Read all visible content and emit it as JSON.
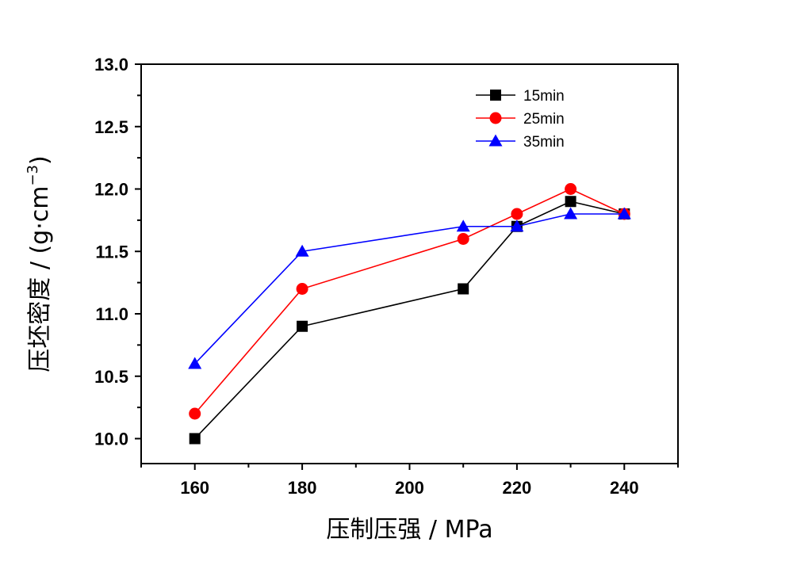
{
  "chart_data": {
    "type": "line",
    "xlabel": "压制压强 / MPa",
    "ylabel_main": "压坯密度 / (g·cm",
    "ylabel_exp": "−3",
    "ylabel_close": ")",
    "xlim": [
      150,
      250
    ],
    "ylim": [
      9.8,
      13.0
    ],
    "x_ticks": [
      160,
      180,
      200,
      220,
      240
    ],
    "x_tick_labels": [
      "160",
      "180",
      "200",
      "220",
      "240"
    ],
    "y_ticks": [
      10.0,
      10.5,
      11.0,
      11.5,
      12.0,
      12.5,
      13.0
    ],
    "y_tick_labels": [
      "10.0",
      "10.5",
      "11.0",
      "11.5",
      "12.0",
      "12.5",
      "13.0"
    ],
    "grid": false,
    "legend_position": "top-right",
    "series": [
      {
        "name": "15min",
        "color": "#000000",
        "marker": "square",
        "x": [
          160,
          180,
          210,
          220,
          230,
          240
        ],
        "y": [
          10.0,
          10.9,
          11.2,
          11.7,
          11.9,
          11.8
        ]
      },
      {
        "name": "25min",
        "color": "#ff0000",
        "marker": "circle",
        "x": [
          160,
          180,
          210,
          220,
          230,
          240
        ],
        "y": [
          10.2,
          11.2,
          11.6,
          11.8,
          12.0,
          11.8
        ]
      },
      {
        "name": "35min",
        "color": "#0000ff",
        "marker": "triangle",
        "x": [
          160,
          180,
          210,
          220,
          230,
          240
        ],
        "y": [
          10.6,
          11.5,
          11.7,
          11.7,
          11.8,
          11.8
        ]
      }
    ]
  }
}
